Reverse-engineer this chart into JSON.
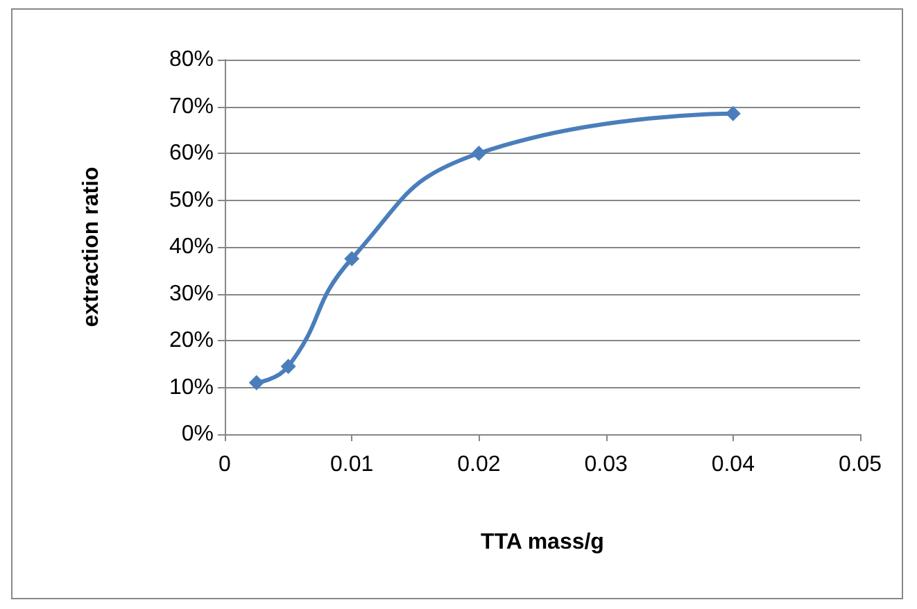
{
  "chart_data": {
    "type": "line",
    "xlabel": "TTA mass/g",
    "ylabel": "extraction ratio",
    "x": [
      0.0025,
      0.005,
      0.01,
      0.02,
      0.04
    ],
    "series": [
      {
        "color": "#4a7ebb",
        "values": [
          11,
          14.5,
          37.5,
          60,
          68.5
        ]
      }
    ],
    "xlim": [
      0,
      0.05
    ],
    "xticks": [
      0,
      0.01,
      0.02,
      0.03,
      0.04,
      0.05
    ],
    "ylim": [
      0,
      80
    ],
    "yticks": [
      {
        "value": 0,
        "label": "0%"
      },
      {
        "value": 10,
        "label": "10%"
      },
      {
        "value": 20,
        "label": "20%"
      },
      {
        "value": 30,
        "label": "30%"
      },
      {
        "value": 40,
        "label": "40%"
      },
      {
        "value": 50,
        "label": "50%"
      },
      {
        "value": 60,
        "label": "60%"
      },
      {
        "value": 70,
        "label": "70%"
      },
      {
        "value": 80,
        "label": "80%"
      }
    ],
    "grid": "y",
    "marker": "diamond",
    "line_style": "solid"
  }
}
